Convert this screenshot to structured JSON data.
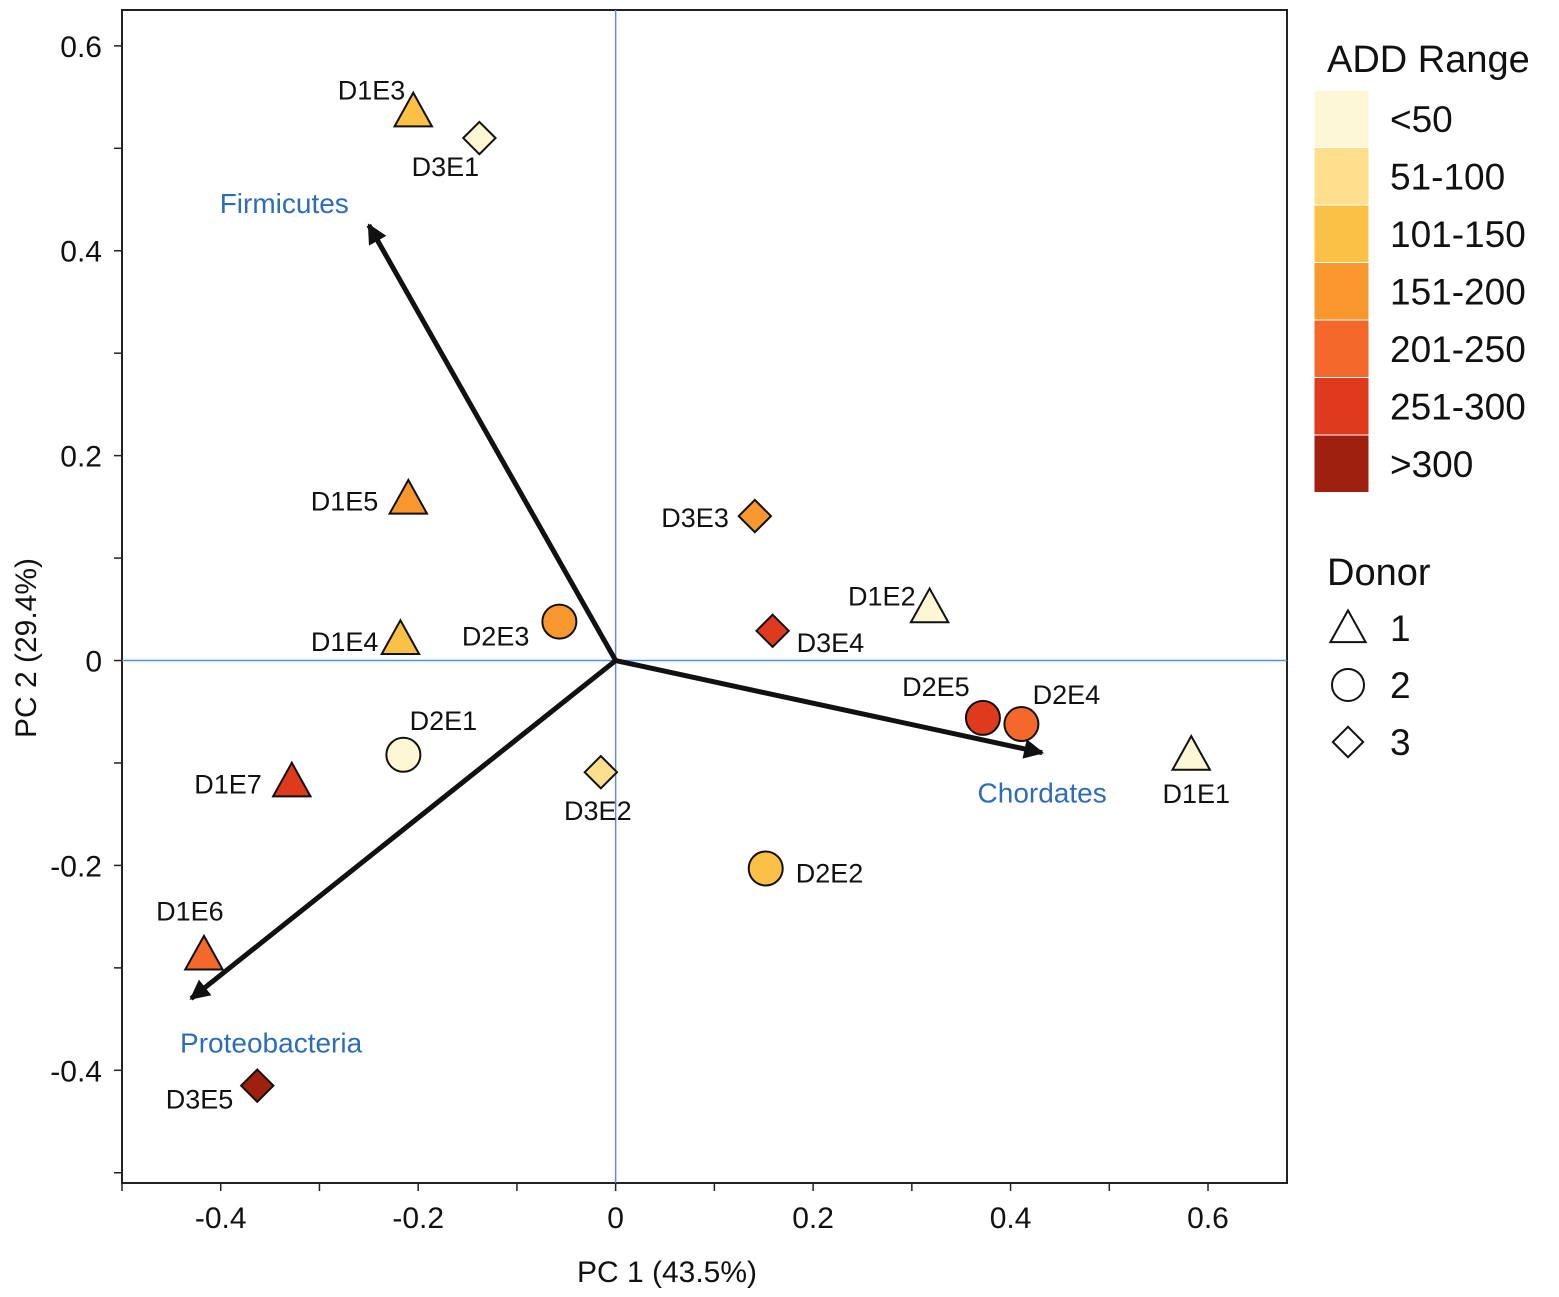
{
  "chart_data": {
    "type": "scatter",
    "subtype": "pca-biplot",
    "xlabel": "PC 1 (43.5%)",
    "ylabel": "PC 2 (29.4%)",
    "xlim": [
      -0.5,
      0.68
    ],
    "ylim": [
      -0.51,
      0.635
    ],
    "xticks": [
      -0.4,
      -0.2,
      0,
      0.2,
      0.4,
      0.6
    ],
    "xtick_labels": [
      "-0.4",
      "-0.2",
      "0",
      "0.2",
      "0.4",
      "0.6"
    ],
    "yticks": [
      -0.4,
      -0.2,
      0,
      0.2,
      0.4,
      0.6
    ],
    "ytick_labels": [
      "-0.4",
      "-0.2",
      "0",
      "0.2",
      "0.4",
      "0.6"
    ],
    "grid": false,
    "reference_lines": {
      "x": 0,
      "y": 0,
      "color": "#5b8fd0"
    },
    "points": [
      {
        "label": "D1E1",
        "donor": 1,
        "add": "<50",
        "x": 0.583,
        "y": -0.092
      },
      {
        "label": "D1E2",
        "donor": 1,
        "add": "<50",
        "x": 0.318,
        "y": 0.052
      },
      {
        "label": "D1E3",
        "donor": 1,
        "add": "101-150",
        "x": -0.205,
        "y": 0.536
      },
      {
        "label": "D1E4",
        "donor": 1,
        "add": "101-150",
        "x": -0.218,
        "y": 0.021
      },
      {
        "label": "D1E5",
        "donor": 1,
        "add": "151-200",
        "x": -0.21,
        "y": 0.158
      },
      {
        "label": "D1E6",
        "donor": 1,
        "add": "201-250",
        "x": -0.417,
        "y": -0.287
      },
      {
        "label": "D1E7",
        "donor": 1,
        "add": "251-300",
        "x": -0.328,
        "y": -0.118
      },
      {
        "label": "D2E1",
        "donor": 2,
        "add": "<50",
        "x": -0.215,
        "y": -0.092
      },
      {
        "label": "D2E2",
        "donor": 2,
        "add": "101-150",
        "x": 0.152,
        "y": -0.203
      },
      {
        "label": "D2E3",
        "donor": 2,
        "add": "151-200",
        "x": -0.057,
        "y": 0.038
      },
      {
        "label": "D2E4",
        "donor": 2,
        "add": "201-250",
        "x": 0.411,
        "y": -0.062
      },
      {
        "label": "D2E5",
        "donor": 2,
        "add": "251-300",
        "x": 0.372,
        "y": -0.056
      },
      {
        "label": "D3E1",
        "donor": 3,
        "add": "<50",
        "x": -0.138,
        "y": 0.51
      },
      {
        "label": "D3E2",
        "donor": 3,
        "add": "51-100",
        "x": -0.015,
        "y": -0.109
      },
      {
        "label": "D3E3",
        "donor": 3,
        "add": "151-200",
        "x": 0.141,
        "y": 0.141
      },
      {
        "label": "D3E4",
        "donor": 3,
        "add": "251-300",
        "x": 0.159,
        "y": 0.029
      },
      {
        "label": "D3E5",
        "donor": 3,
        "add": ">300",
        "x": -0.363,
        "y": -0.415
      }
    ],
    "vectors": [
      {
        "name": "Firmicutes",
        "x": -0.25,
        "y": 0.425
      },
      {
        "name": "Chordates",
        "x": 0.432,
        "y": -0.09
      },
      {
        "name": "Proteobacteria",
        "x": -0.43,
        "y": -0.33
      }
    ],
    "legend": {
      "placement": "right",
      "color_title": "ADD Range",
      "color_bins": [
        {
          "label": "<50",
          "color": "#fdf7d5"
        },
        {
          "label": "51-100",
          "color": "#fddf8e"
        },
        {
          "label": "101-150",
          "color": "#fbc046"
        },
        {
          "label": "151-200",
          "color": "#f8972e"
        },
        {
          "label": "201-250",
          "color": "#f4682b"
        },
        {
          "label": "251-300",
          "color": "#df3a1d"
        },
        {
          "label": ">300",
          "color": "#a0200f"
        }
      ],
      "shape_title": "Donor",
      "shapes": [
        {
          "label": "1",
          "shape": "triangle"
        },
        {
          "label": "2",
          "shape": "circle"
        },
        {
          "label": "3",
          "shape": "diamond"
        }
      ]
    },
    "colors": {
      "vector_label": "#2e6db4",
      "axis": "#111111",
      "reference": "#5b8fd0"
    }
  }
}
